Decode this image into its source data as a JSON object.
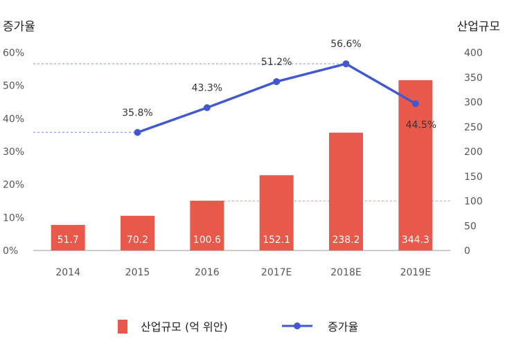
{
  "chart_data": {
    "type": "bar",
    "categories": [
      "2014",
      "2015",
      "2016",
      "2017E",
      "2018E",
      "2019E"
    ],
    "series": [
      {
        "name": "산업규모 (억 위안)",
        "type": "bar",
        "axis": "right",
        "values": [
          51.7,
          70.2,
          100.6,
          152.1,
          238.2,
          344.3
        ],
        "color": "#e8594b"
      },
      {
        "name": "증가율",
        "type": "line",
        "axis": "left",
        "values": [
          null,
          35.8,
          43.3,
          51.2,
          56.6,
          44.5
        ],
        "color": "#4158d0"
      }
    ],
    "bar_labels": [
      "51.7",
      "70.2",
      "100.6",
      "152.1",
      "238.2",
      "344.3"
    ],
    "line_labels": [
      "",
      "35.8%",
      "43.3%",
      "51.2%",
      "56.6%",
      "44.5%"
    ],
    "y_left": {
      "title": "증가율",
      "ticks": [
        "0%",
        "10%",
        "20%",
        "30%",
        "40%",
        "50%",
        "60%"
      ],
      "range": [
        0,
        60
      ]
    },
    "y_right": {
      "title": "산업규모",
      "ticks": [
        "0",
        "50",
        "100",
        "150",
        "200",
        "250",
        "300",
        "350",
        "400"
      ],
      "range": [
        0,
        400
      ]
    },
    "grid": false,
    "legend": "bottom"
  }
}
